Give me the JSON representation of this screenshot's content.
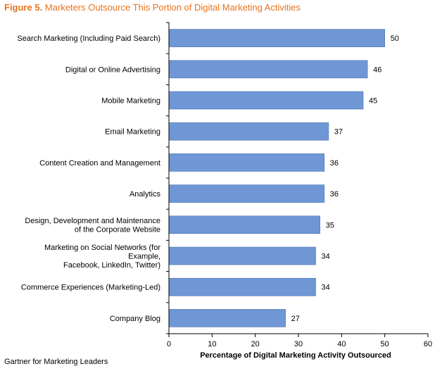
{
  "figure": {
    "number": "Figure 5.",
    "title": "Marketers Outsource This Portion of Digital Marketing Activities",
    "source": "Gartner for Marketing Leaders"
  },
  "colors": {
    "bar": "#6f97d6",
    "bar_stroke": "#4a70b0",
    "title": "#e8731c",
    "axis": "#000000"
  },
  "chart_data": {
    "type": "bar",
    "orientation": "horizontal",
    "title": "Marketers Outsource This Portion of Digital Marketing Activities",
    "xlabel": "Percentage of Digital Marketing Activity Outsourced",
    "ylabel": "",
    "xlim": [
      0,
      60
    ],
    "xticks": [
      0,
      10,
      20,
      30,
      40,
      50,
      60
    ],
    "grid": false,
    "categories": [
      "Search Marketing (Including Paid Search)",
      "Digital or Online Advertising",
      "Mobile Marketing",
      "Email Marketing",
      "Content Creation and Management",
      "Analytics",
      "Design, Development and Maintenance of the Corporate Website",
      "Marketing on Social Networks (for Example, Facebook, LinkedIn, Twitter)",
      "Commerce Experiences (Marketing-Led)",
      "Company Blog"
    ],
    "category_lines": [
      [
        "Search Marketing (Including Paid Search)"
      ],
      [
        "Digital or Online Advertising"
      ],
      [
        "Mobile Marketing"
      ],
      [
        "Email Marketing"
      ],
      [
        "Content Creation and Management"
      ],
      [
        "Analytics"
      ],
      [
        "Design, Development and Maintenance",
        "of the Corporate Website"
      ],
      [
        "Marketing on Social Networks (for",
        "Example,",
        "Facebook, LinkedIn, Twitter)"
      ],
      [
        "Commerce Experiences (Marketing-Led)"
      ],
      [
        "Company Blog"
      ]
    ],
    "values": [
      50,
      46,
      45,
      37,
      36,
      36,
      35,
      34,
      34,
      27
    ]
  }
}
